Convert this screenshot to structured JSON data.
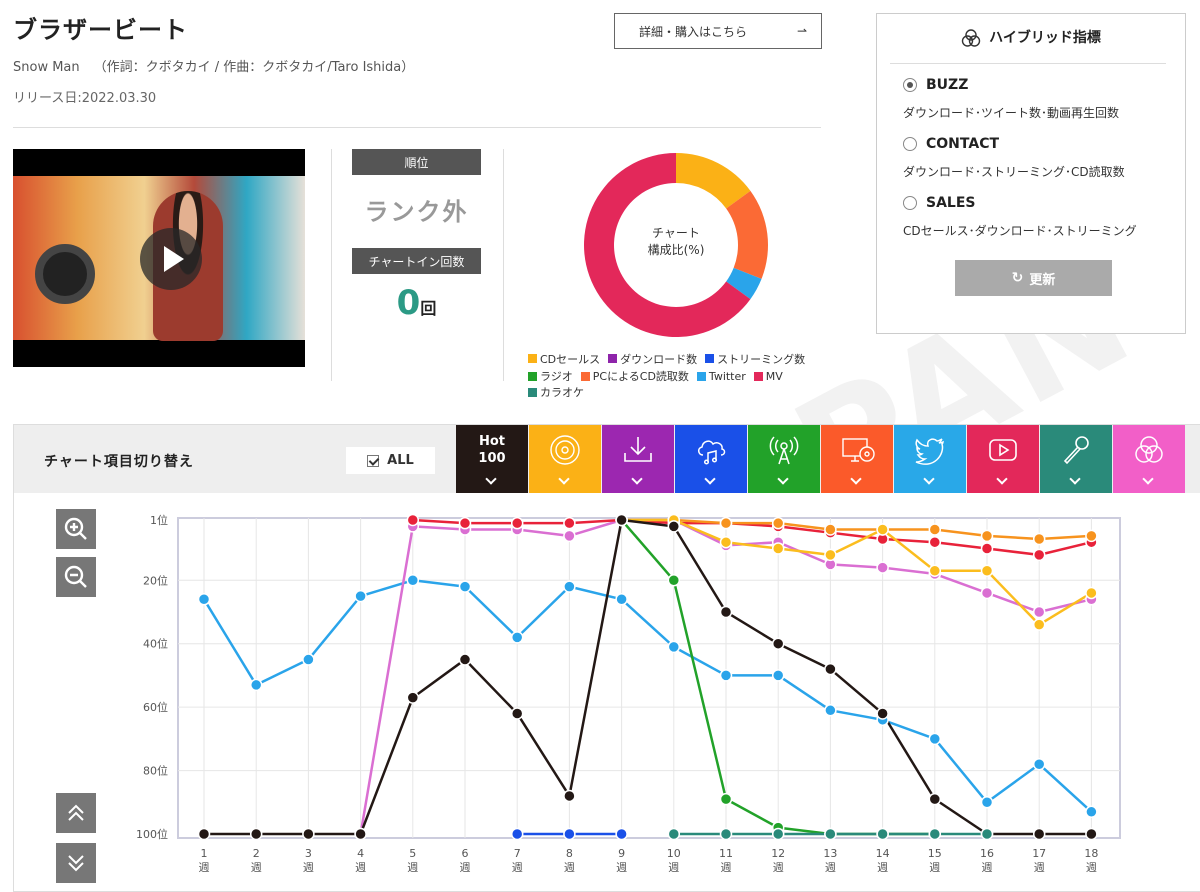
{
  "song": {
    "title": "ブラザービート",
    "artist": "Snow Man",
    "credits": "（作詞：クボタカイ / 作曲：クボタカイ/Taro Ishida）",
    "release": "リリース日:2022.03.30"
  },
  "detail_button": {
    "label": "詳細・購入はこちら"
  },
  "rank": {
    "rank_label": "順位",
    "rank_value": "ランク外",
    "chartin_label": "チャートイン回数",
    "chartin_count": "0",
    "chartin_unit": "回"
  },
  "composition": {
    "center_line1": "チャート",
    "center_line2": "構成比(%)",
    "slices": [
      {
        "name": "CDセールス",
        "value": 15,
        "color": "#fbb116"
      },
      {
        "name": "ダウンロード数",
        "value": 0,
        "color": "#8e24aa"
      },
      {
        "name": "ストリーミング数",
        "value": 0,
        "color": "#1a50e8"
      },
      {
        "name": "ラジオ",
        "value": 0,
        "color": "#22a229"
      },
      {
        "name": "PCによるCD読取数",
        "value": 16,
        "color": "#fb6a35"
      },
      {
        "name": "Twitter",
        "value": 4,
        "color": "#2aa4ea"
      },
      {
        "name": "MV",
        "value": 65,
        "color": "#e3285a"
      },
      {
        "name": "カラオケ",
        "value": 0,
        "color": "#2a8a7a"
      }
    ],
    "legend_row1": [
      "CDセールス",
      "ダウンロード数",
      "ストリーミング数"
    ],
    "legend_row2": [
      "ラジオ",
      "PCによるCD読取数",
      "Twitter",
      "MV",
      "カラオケ"
    ]
  },
  "hybrid": {
    "title": "ハイブリッド指標",
    "icon": "triple-circle-icon",
    "options": [
      {
        "label": "BUZZ",
        "desc": "ダウンロード･ツイート数･動画再生回数",
        "selected": true
      },
      {
        "label": "CONTACT",
        "desc": "ダウンロード･ストリーミング･CD読取数",
        "selected": false
      },
      {
        "label": "SALES",
        "desc": "CDセールス･ダウンロード･ストリーミング",
        "selected": false
      }
    ],
    "refresh_label": "更新"
  },
  "switcher": {
    "label": "チャート項目切り替え",
    "all_label": "ALL",
    "hot_line1": "Hot",
    "hot_line2": "100",
    "tabs": [
      {
        "name": "hot100",
        "color": "#231815",
        "icon": "hot-100"
      },
      {
        "name": "cd-sales",
        "color": "#fbb116",
        "icon": "cd-icon"
      },
      {
        "name": "download",
        "color": "#9c27b0",
        "icon": "download-icon"
      },
      {
        "name": "streaming",
        "color": "#1a50e8",
        "icon": "cloud-music-icon"
      },
      {
        "name": "radio",
        "color": "#22a229",
        "icon": "radio-icon"
      },
      {
        "name": "pc-cd-read",
        "color": "#fb5a2a",
        "icon": "pc-cd-icon"
      },
      {
        "name": "twitter",
        "color": "#29a8e8",
        "icon": "twitter-icon"
      },
      {
        "name": "mv",
        "color": "#e3285a",
        "icon": "play-button-icon"
      },
      {
        "name": "karaoke",
        "color": "#2a8a7a",
        "icon": "microphone-icon"
      },
      {
        "name": "hybrid",
        "color": "#f25fc8",
        "icon": "triple-circle-icon"
      }
    ]
  },
  "chart_data": {
    "type": "line",
    "x": [
      "1週",
      "2週",
      "3週",
      "4週",
      "5週",
      "6週",
      "7週",
      "8週",
      "9週",
      "10週",
      "11週",
      "12週",
      "13週",
      "14週",
      "15週",
      "16週",
      "17週",
      "18週"
    ],
    "y_ticks": [
      "1位",
      "20位",
      "40位",
      "60位",
      "80位",
      "100位"
    ],
    "y_tick_values": [
      1,
      20,
      40,
      60,
      80,
      100
    ],
    "ylim": [
      1,
      100
    ],
    "y_inverted": true,
    "grid": true,
    "series": [
      {
        "color": "#2aa4ea",
        "values": [
          26,
          53,
          45,
          25,
          20,
          22,
          38,
          22,
          26,
          41,
          50,
          50,
          61,
          64,
          70,
          90,
          78,
          93
        ]
      },
      {
        "color": "#da6fd2",
        "values": [
          null,
          null,
          null,
          100,
          3,
          4,
          4,
          6,
          1,
          1,
          9,
          8,
          15,
          16,
          18,
          24,
          30,
          26
        ]
      },
      {
        "color": "#e8223a",
        "values": [
          null,
          null,
          null,
          null,
          1,
          2,
          2,
          2,
          1,
          2,
          2,
          3,
          5,
          7,
          8,
          10,
          12,
          8
        ]
      },
      {
        "color": "#f7931e",
        "values": [
          null,
          null,
          null,
          null,
          null,
          null,
          null,
          null,
          1,
          1,
          2,
          2,
          4,
          4,
          4,
          6,
          7,
          6
        ]
      },
      {
        "color": "#fbbd1e",
        "values": [
          null,
          null,
          null,
          null,
          null,
          null,
          null,
          null,
          1,
          1,
          8,
          10,
          12,
          4,
          17,
          17,
          34,
          24
        ]
      },
      {
        "color": "#22a229",
        "values": [
          null,
          null,
          null,
          null,
          null,
          null,
          null,
          null,
          1,
          20,
          89,
          98,
          100,
          100,
          100,
          null,
          null,
          null
        ]
      },
      {
        "color": "#231815",
        "values": [
          100,
          100,
          100,
          100,
          57,
          45,
          62,
          88,
          1,
          3,
          30,
          40,
          48,
          62,
          89,
          100,
          100,
          100
        ]
      },
      {
        "color": "#1a50e8",
        "values": [
          null,
          null,
          null,
          null,
          null,
          null,
          100,
          100,
          100,
          null,
          null,
          null,
          null,
          null,
          null,
          null,
          null,
          null
        ]
      },
      {
        "color": "#2a8a7a",
        "values": [
          null,
          null,
          null,
          null,
          null,
          null,
          null,
          null,
          null,
          100,
          100,
          100,
          100,
          100,
          100,
          100,
          null,
          null
        ]
      }
    ]
  }
}
